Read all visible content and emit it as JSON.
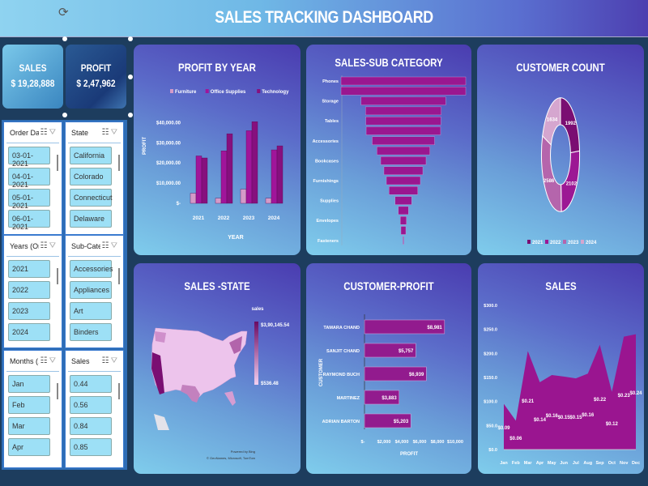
{
  "header": {
    "title": "SALES TRACKING DASHBOARD",
    "rotate_icon": "rotate-handle-icon"
  },
  "kpis": {
    "sales_label": "SALES",
    "sales_value": "$ 19,28,888",
    "profit_label": "PROFIT",
    "profit_value": "$ 2,47,962"
  },
  "slicers": [
    {
      "title": "Order Date",
      "items": [
        "03-01-2021",
        "04-01-2021",
        "05-01-2021",
        "06-01-2021"
      ]
    },
    {
      "title": "State",
      "items": [
        "California",
        "Colorado",
        "Connecticut",
        "Delaware"
      ]
    },
    {
      "title": "Years (Or...",
      "items": [
        "2021",
        "2022",
        "2023",
        "2024"
      ]
    },
    {
      "title": "Sub-Category",
      "items": [
        "Accessories",
        "Appliances",
        "Art",
        "Binders"
      ]
    },
    {
      "title": "Months (...",
      "items": [
        "Jan",
        "Feb",
        "Mar",
        "Apr"
      ]
    },
    {
      "title": "Sales",
      "items": [
        "0.44",
        "0.56",
        "0.84",
        "0.85"
      ]
    }
  ],
  "chart_data": [
    {
      "type": "bar",
      "title": "PROFIT BY YEAR",
      "xlabel": "YEAR",
      "ylabel": "PROFIT",
      "categories": [
        "2021",
        "2022",
        "2023",
        "2024"
      ],
      "yticks": [
        "$-",
        "$10,000.00",
        "$20,000.00",
        "$30,000.00",
        "$40,000.00"
      ],
      "ylim": [
        0,
        45000
      ],
      "legend": "top",
      "series": [
        {
          "name": "Furniture",
          "color": "#d49ac8",
          "values": [
            5000,
            2500,
            7000,
            2500
          ]
        },
        {
          "name": "Office Supplies",
          "color": "#a0159a",
          "values": [
            23500,
            26000,
            36000,
            26500
          ]
        },
        {
          "name": "Technology",
          "color": "#86107e",
          "values": [
            22500,
            34500,
            40500,
            28500
          ]
        }
      ]
    },
    {
      "type": "bar",
      "orientation": "funnel",
      "title": "SALES-SUB CATEGORY",
      "color": "#9a1790",
      "labels": [
        "Phones",
        "",
        "Storage",
        "",
        "Tables",
        "",
        "Accessories",
        "",
        "Bookcases",
        "",
        "Furnishings",
        "",
        "Supplies",
        "",
        "Envelopes",
        "",
        "Fasteners"
      ],
      "values": [
        330,
        330,
        224,
        200,
        199,
        197,
        165,
        140,
        120,
        103,
        90,
        76,
        44,
        27,
        16,
        13,
        2
      ]
    },
    {
      "type": "pie",
      "donut": true,
      "title": "CUSTOMER COUNT",
      "categories": [
        "2021",
        "2022",
        "2023",
        "2024"
      ],
      "values": [
        1992,
        2102,
        2586,
        1634
      ],
      "colors": [
        "#7a0e72",
        "#9c1894",
        "#b565ac",
        "#d5a6cf"
      ],
      "legend": "bottom"
    },
    {
      "type": "map",
      "title": "SALES -STATE",
      "legend_title": "sales",
      "max_label": "$3,90,145.54",
      "min_label": "$536.48",
      "credit1": "Powered by Bing",
      "credit2": "© GeoNames, Microsoft, TomTom"
    },
    {
      "type": "bar",
      "orientation": "horizontal",
      "title": "CUSTOMER-PROFIT",
      "xlabel": "PROFIT",
      "ylabel": "CUSTOMER",
      "color": "#921b8e",
      "categories": [
        "TAMARA CHAND",
        "SANJIT CHAND",
        "RAYMOND BUCH",
        "MARTINEZ",
        "ADRIAN BARTON"
      ],
      "values": [
        8981,
        5757,
        6939,
        3883,
        5203
      ],
      "labels": [
        "$8,981",
        "$5,757",
        "$6,939",
        "$3,883",
        "$5,203"
      ],
      "xticks": [
        "$-",
        "$2,000",
        "$4,000",
        "$6,000",
        "$8,000",
        "$10,000"
      ],
      "xlim": [
        0,
        10000
      ]
    },
    {
      "type": "area",
      "title": "SALES",
      "color": "#9a1590",
      "categories": [
        "Jan",
        "Feb",
        "Mar",
        "Apr",
        "May",
        "Jun",
        "Jul",
        "Aug",
        "Sep",
        "Oct",
        "Nov",
        "Dec"
      ],
      "values": [
        95,
        60,
        205,
        140,
        155,
        152,
        148,
        158,
        218,
        120,
        235,
        240
      ],
      "labels": [
        "$0.09",
        "$0.06",
        "$0.21",
        "$0.14",
        "$0.16",
        "$0.15",
        "$0.15",
        "$0.16",
        "$0.22",
        "$0.12",
        "$0.23",
        "$0.24"
      ],
      "yticks": [
        "$0.0",
        "$50.0",
        "$100.0",
        "$150.0",
        "$200.0",
        "$250.0",
        "$300.0"
      ],
      "ylim": [
        0,
        300
      ]
    }
  ]
}
